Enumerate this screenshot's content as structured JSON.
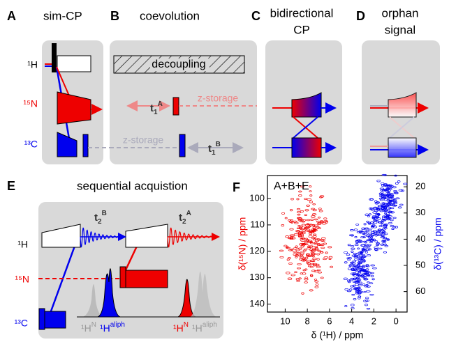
{
  "panels": {
    "a": {
      "letter": "A",
      "title": "sim-CP"
    },
    "b": {
      "letter": "B",
      "title": "coevolution",
      "block": "decoupling",
      "z_storage_n": "z-storage",
      "z_storage_c": "z-storage",
      "t_n": {
        "t": "t",
        "sub": "1",
        "sup": "A"
      },
      "t_c": {
        "t": "t",
        "sub": "1",
        "sup": "B"
      }
    },
    "c": {
      "letter": "C",
      "title": [
        "bidirectional",
        "CP"
      ]
    },
    "d": {
      "letter": "D",
      "title": [
        "orphan",
        "signal"
      ]
    },
    "e": {
      "letter": "E",
      "title": "sequential acquistion",
      "t_h_b": {
        "t": "t",
        "sub": "2",
        "sup": "B"
      },
      "t_h_a": {
        "t": "t",
        "sub": "2",
        "sup": "A"
      },
      "nuclei": [
        "¹H",
        "¹⁵N",
        "¹³C"
      ],
      "spectrum_labels": [
        {
          "base": "¹H",
          "sup": "N"
        },
        {
          "base": "¹H",
          "sup": "aliph"
        },
        {
          "base": "¹H",
          "sup": "N"
        },
        {
          "base": "¹H",
          "sup": "aliph"
        }
      ]
    },
    "f": {
      "letter": "F",
      "label": "A+B+E",
      "x_label": "δ (¹H) / ppm",
      "y_label": "δ(¹⁵N) / ppm",
      "y2_label": "δ(¹³C) / ppm",
      "xlim": [
        11.6,
        -1
      ],
      "xticks": [
        10,
        8,
        6,
        4,
        2,
        0
      ],
      "ylim": [
        91.3,
        143
      ],
      "yticks": [
        100,
        110,
        120,
        130,
        140
      ],
      "y2lim": [
        15.7,
        67.8
      ],
      "y2ticks": [
        20,
        30,
        40,
        50,
        60
      ]
    }
  },
  "nuclei_top": [
    "¹H",
    "¹⁵N",
    "¹³C"
  ]
}
